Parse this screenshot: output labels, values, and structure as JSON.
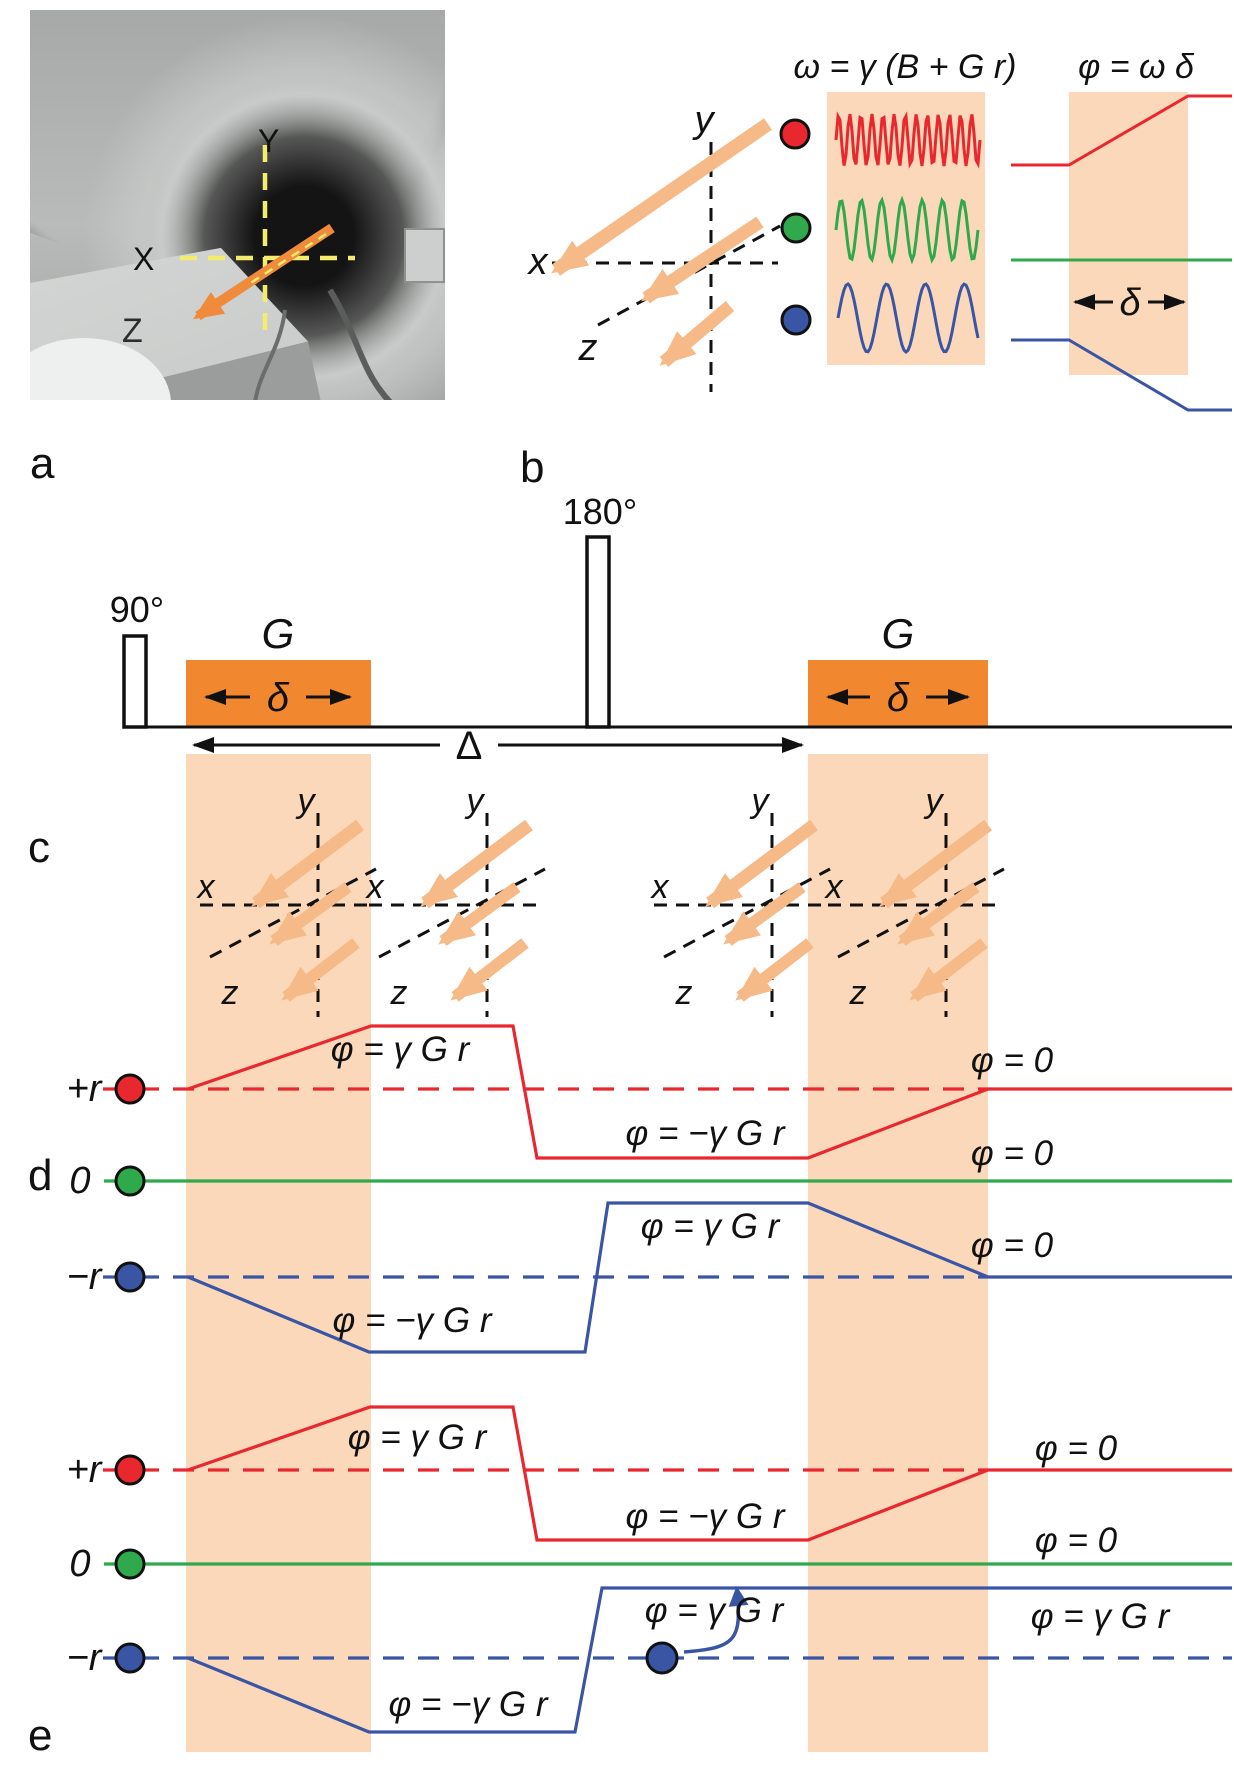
{
  "colors": {
    "red": "#e8282e",
    "green": "#2fa94c",
    "blue": "#3a55a4",
    "gradient_orange": "#f1872e",
    "band_peach": "#fbd8ba",
    "arrow_orange": "#f6ba88",
    "crosshair_yellow": "#f3ec6d"
  },
  "panels": {
    "a": {
      "label": "a",
      "axes": {
        "x": "X",
        "y": "Y",
        "z": "Z"
      }
    },
    "b": {
      "label": "b",
      "freq_formula": "ω = γ (B + G r)",
      "phase_formula": "φ = ω δ",
      "axes": {
        "x": "x",
        "y": "y",
        "z": "z"
      },
      "delta": "δ"
    },
    "c": {
      "label": "c",
      "rf90": "90°",
      "rf180": "180°",
      "g1": "G",
      "g2": "G",
      "delta1": "δ",
      "delta2": "δ",
      "big_delta": "Δ",
      "axes": {
        "x": "x",
        "y": "y",
        "z": "z"
      }
    },
    "d": {
      "label": "d",
      "rows": {
        "plus": "+r",
        "zero": "0",
        "minus": "−r"
      },
      "red_up": "φ = γ G r",
      "red_down": "φ = −γ G r",
      "red_zero": "φ = 0",
      "green_zero": "φ = 0",
      "blue_up": "φ = γ G r",
      "blue_down": "φ = −γ G r",
      "blue_zero": "φ = 0"
    },
    "e": {
      "label": "e",
      "rows": {
        "plus": "+r",
        "zero": "0",
        "minus": "−r"
      },
      "red_up": "φ = γ G r",
      "red_down": "φ = −γ G r",
      "red_zero": "φ = 0",
      "green_zero": "φ = 0",
      "blue_down": "φ = −γ G r",
      "blue_mid": "φ = γ G r",
      "blue_right": "φ = γ G r"
    }
  }
}
